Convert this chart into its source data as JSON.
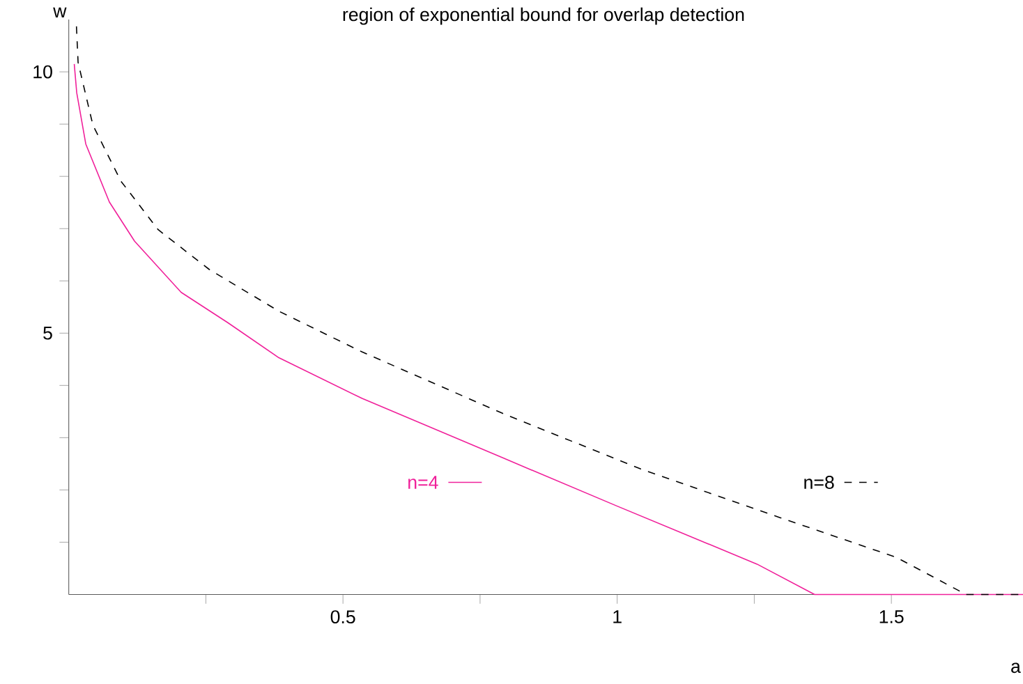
{
  "chart_data": {
    "type": "line",
    "title": "region of exponential bound for overlap detection",
    "xlabel": "a",
    "ylabel": "w",
    "xlim": [
      0,
      1.74
    ],
    "ylim": [
      0,
      11
    ],
    "xticks": [
      {
        "value": 0.25,
        "label": null
      },
      0.5,
      {
        "value": 0.75,
        "label": null
      },
      1,
      {
        "value": 1.25,
        "label": null
      },
      1.5
    ],
    "yticks": [
      {
        "value": 1,
        "label": null
      },
      {
        "value": 2,
        "label": null
      },
      {
        "value": 3,
        "label": null
      },
      {
        "value": 4,
        "label": null
      },
      5,
      {
        "value": 6,
        "label": null
      },
      {
        "value": 7,
        "label": null
      },
      {
        "value": 8,
        "label": null
      },
      {
        "value": 9,
        "label": null
      },
      10
    ],
    "legend": "bottom",
    "grid": false,
    "marker": "none",
    "series": [
      {
        "name": "n=4",
        "color": "#f0209a",
        "line_style": "solid",
        "x": [
          0.01,
          0.0145,
          0.031,
          0.074,
          0.12,
          0.205,
          0.29,
          0.383,
          0.535,
          0.79,
          1.0,
          1.255,
          1.36,
          1.74
        ],
        "values": [
          10.15,
          9.6,
          8.62,
          7.51,
          6.76,
          5.78,
          5.2,
          4.53,
          3.75,
          2.62,
          1.69,
          0.58,
          0,
          0
        ]
      },
      {
        "name": "n=8",
        "color": "#000000",
        "line_style": "dashed",
        "x": [
          0.014,
          0.017,
          0.044,
          0.095,
          0.163,
          0.256,
          0.383,
          0.535,
          0.79,
          1.043,
          1.297,
          1.509,
          1.636,
          1.74
        ],
        "values": [
          10.87,
          10.18,
          8.98,
          7.91,
          6.98,
          6.22,
          5.42,
          4.64,
          3.47,
          2.4,
          1.47,
          0.71,
          0,
          0
        ]
      }
    ]
  }
}
